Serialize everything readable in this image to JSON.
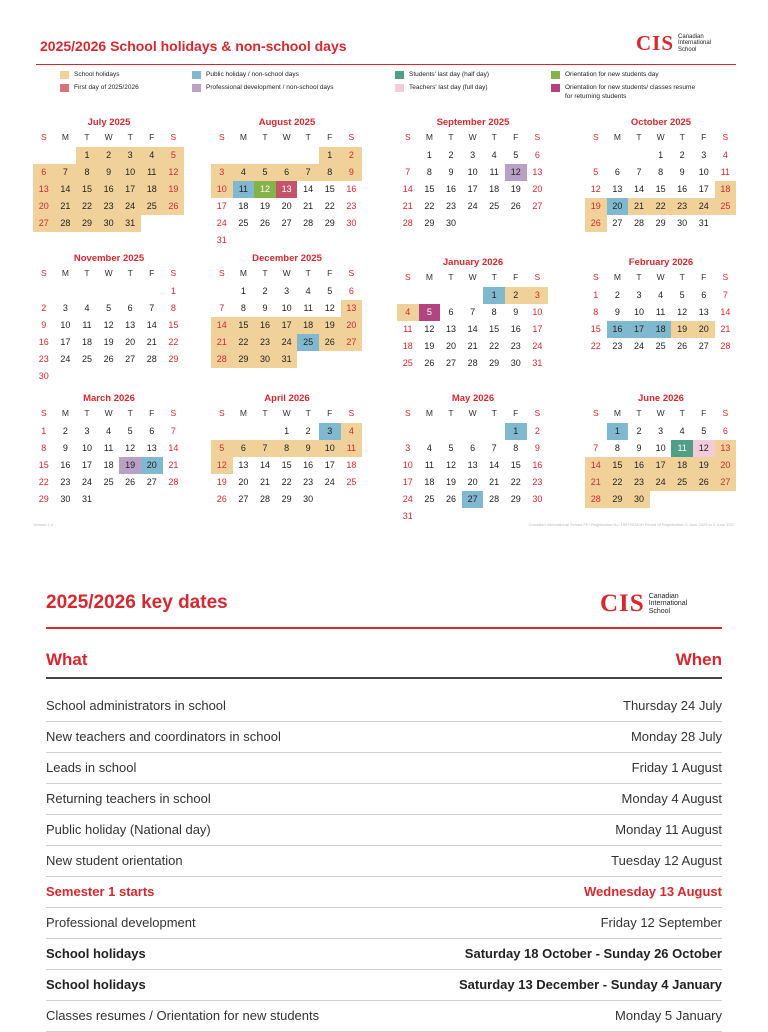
{
  "calendar": {
    "title": "2025/2026 School holidays & non-school days",
    "logo": {
      "mark": "CIS",
      "sub": [
        "Canadian",
        "International",
        "School"
      ]
    },
    "legend": [
      {
        "label": "School holidays",
        "color": "#f0d19a"
      },
      {
        "label": "First day of 2025/2026",
        "color": "#d7727c"
      },
      {
        "label": "Public holiday / non-school days",
        "color": "#7fb8cf"
      },
      {
        "label": "Professional development / non-school days",
        "color": "#b9a1c6"
      },
      {
        "label": "Students' last day (half day)",
        "color": "#4f9e86"
      },
      {
        "label": "Teachers' last day (full day)",
        "color": "#f2ccd8"
      },
      {
        "label": "Orientation for new students day",
        "color": "#84b34a"
      },
      {
        "label": "Orientation for new students/ classes resume for returning students",
        "color": "#b1457f"
      }
    ],
    "weekdays": [
      "S",
      "M",
      "T",
      "W",
      "T",
      "F",
      "S"
    ],
    "months": [
      {
        "name": "July 2025",
        "start": 2,
        "days": 31,
        "marks": {
          "sh": [
            1,
            2,
            3,
            4,
            5,
            6,
            7,
            8,
            9,
            10,
            11,
            12,
            13,
            14,
            15,
            16,
            17,
            18,
            19,
            20,
            21,
            22,
            23,
            24,
            25,
            26,
            27,
            28,
            29,
            30,
            31
          ]
        }
      },
      {
        "name": "August 2025",
        "start": 5,
        "days": 31,
        "marks": {
          "sh": [
            1,
            2,
            3,
            4,
            5,
            6,
            7,
            8,
            9,
            10
          ],
          "ph": [
            11
          ],
          "on": [
            12
          ],
          "fd": [
            13
          ]
        }
      },
      {
        "name": "September 2025",
        "start": 1,
        "days": 30,
        "marks": {
          "pd": [
            12
          ]
        }
      },
      {
        "name": "October 2025",
        "start": 3,
        "days": 31,
        "marks": {
          "sh": [
            18,
            19,
            21,
            22,
            23,
            24,
            25,
            26
          ],
          "ph": [
            20
          ]
        }
      },
      {
        "name": "November 2025",
        "start": 6,
        "days": 30,
        "marks": {}
      },
      {
        "name": "December 2025",
        "start": 1,
        "days": 31,
        "marks": {
          "sh": [
            13,
            14,
            15,
            16,
            17,
            18,
            19,
            20,
            21,
            22,
            23,
            24,
            26,
            27,
            28,
            29,
            30,
            31
          ],
          "ph": [
            25
          ]
        }
      },
      {
        "name": "January 2026",
        "start": 4,
        "days": 31,
        "marks": {
          "sh": [
            2,
            3,
            4
          ],
          "ph": [
            1
          ],
          "or": [
            5
          ]
        }
      },
      {
        "name": "February 2026",
        "start": 0,
        "days": 28,
        "marks": {
          "ph": [
            16,
            17,
            18
          ],
          "sh": [
            19,
            20
          ]
        }
      },
      {
        "name": "March 2026",
        "start": 0,
        "days": 31,
        "marks": {
          "pd": [
            19
          ],
          "ph": [
            20
          ]
        }
      },
      {
        "name": "April 2026",
        "start": 3,
        "days": 30,
        "marks": {
          "ph": [
            3
          ],
          "sh": [
            4,
            5,
            6,
            7,
            8,
            9,
            10,
            11,
            12
          ]
        }
      },
      {
        "name": "May 2026",
        "start": 5,
        "days": 31,
        "marks": {
          "ph": [
            1,
            27
          ]
        }
      },
      {
        "name": "June 2026",
        "start": 1,
        "days": 30,
        "marks": {
          "ph": [
            1
          ],
          "sl": [
            11
          ],
          "tl": [
            12
          ],
          "sh": [
            13,
            14,
            15,
            16,
            17,
            18,
            19,
            20,
            21,
            22,
            23,
            24,
            25,
            26,
            27,
            28,
            29,
            30
          ]
        }
      }
    ],
    "footnote_left": "Version 1.0",
    "footnote_right": "Canadian International School PEI Registration No. 199700240H Period of Registration: 6 June 2023 to 5 June 2027"
  },
  "key_dates": {
    "title": "2025/2026 key dates",
    "logo": {
      "mark": "CIS",
      "sub": [
        "Canadian",
        "International",
        "School"
      ]
    },
    "what_header": "What",
    "when_header": "When",
    "rows": [
      {
        "what": "School administrators in school",
        "when": "Thursday 24 July",
        "style": "normal"
      },
      {
        "what": "New teachers and coordinators in school",
        "when": "Monday 28 July",
        "style": "normal"
      },
      {
        "what": "Leads in school",
        "when": "Friday 1 August",
        "style": "normal"
      },
      {
        "what": "Returning teachers in school",
        "when": "Monday 4 August",
        "style": "normal"
      },
      {
        "what": "Public holiday (National day)",
        "when": "Monday 11 August",
        "style": "normal"
      },
      {
        "what": "New student orientation",
        "when": "Tuesday 12 August",
        "style": "normal"
      },
      {
        "what": "Semester 1 starts",
        "when": "Wednesday 13 August",
        "style": "highlight"
      },
      {
        "what": "Professional development",
        "when": "Friday 12 September",
        "style": "normal"
      },
      {
        "what": "School holidays",
        "when": "Saturday 18 October - Sunday 26 October",
        "style": "bold"
      },
      {
        "what": "School holidays",
        "when": "Saturday 13 December - Sunday 4 January",
        "style": "bold"
      },
      {
        "what": "Classes resumes / Orientation for new students",
        "when": "Monday 5 January",
        "style": "normal"
      }
    ]
  }
}
